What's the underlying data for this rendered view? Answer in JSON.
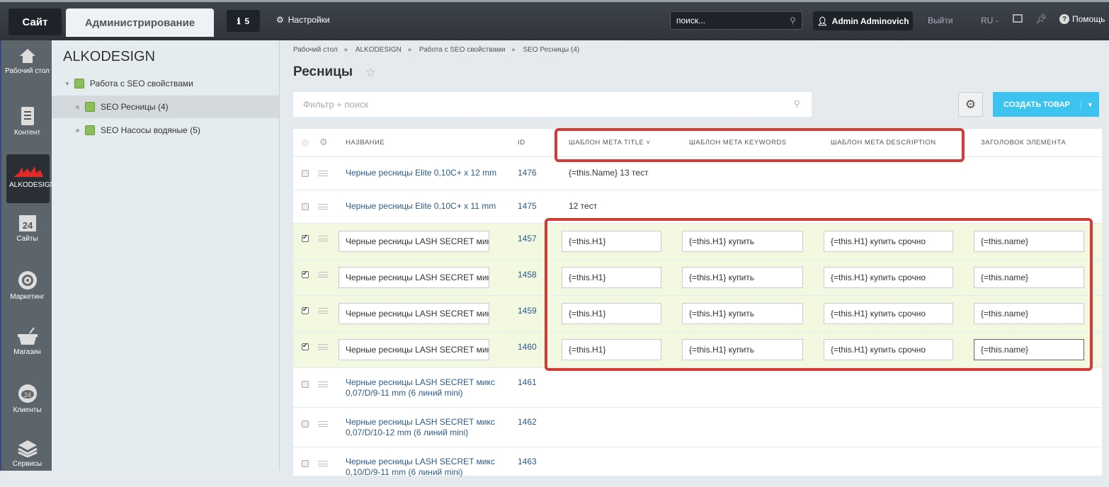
{
  "topbar": {
    "site": "Сайт",
    "admin": "Администрирование",
    "notifications": "5",
    "settings": "Настройки",
    "search_placeholder": "поиск...",
    "user": "Admin Adminovich",
    "logout": "Выйти",
    "lang": "RU",
    "help": "Помощь"
  },
  "leftnav": [
    {
      "label": "Рабочий стол",
      "icon": "home-icon"
    },
    {
      "label": "Контент",
      "icon": "document-icon"
    },
    {
      "label": "ALKODESIGN",
      "icon": "alkodesign-logo-icon",
      "active": true
    },
    {
      "label": "Сайты",
      "icon": "calendar-24-icon"
    },
    {
      "label": "Маркетинг",
      "icon": "target-icon"
    },
    {
      "label": "Магазин",
      "icon": "basket-icon"
    },
    {
      "label": "Клиенты",
      "icon": "cloud-24-icon"
    },
    {
      "label": "Сервисы",
      "icon": "layers-icon"
    }
  ],
  "tree": {
    "title": "ALKODESIGN",
    "items": [
      {
        "label": "Работа с SEO свойствами",
        "level": 0
      },
      {
        "label": "SEO Ресницы (4)",
        "level": 1,
        "selected": true
      },
      {
        "label": "SEO Насосы водяные (5)",
        "level": 1
      }
    ]
  },
  "breadcrumbs": [
    "Рабочий стол",
    "ALKODESIGN",
    "Работа с SEO свойствами",
    "SEO Ресницы (4)"
  ],
  "page_title": "Ресницы",
  "filter_placeholder": "Фильтр + поиск",
  "create_button": "СОЗДАТЬ ТОВАР",
  "colors": {
    "accent": "#3cc3f0",
    "highlight": "#d23b36",
    "edit_row": "#f3f8e0"
  },
  "table": {
    "columns": [
      "НАЗВАНИЕ",
      "ID",
      "ШАБЛОН META TITLE",
      "ШАБЛОН META KEYWORDS",
      "ШАБЛОН META DESCRIPTION",
      "ЗАГОЛОВОК ЭЛЕМЕНТА"
    ],
    "rows": [
      {
        "name": "Черные ресницы Elite 0,10C+ x 12 mm",
        "id": "1476",
        "title": "{=this.Name} 13 тест",
        "checked": false,
        "edit": false
      },
      {
        "name": "Черные ресницы Elite 0,10C+ x 11 mm",
        "id": "1475",
        "title": "12 тест",
        "checked": false,
        "edit": false
      },
      {
        "name": "Черные ресницы LASH SECRET мик",
        "id": "1457",
        "title": "{=this.H1}",
        "keywords": "{=this.H1} купить",
        "description": "{=this.H1} купить срочно",
        "heading": "{=this.name}",
        "checked": true,
        "edit": true
      },
      {
        "name": "Черные ресницы LASH SECRET мик",
        "id": "1458",
        "title": "{=this.H1}",
        "keywords": "{=this.H1} купить",
        "description": "{=this.H1} купить срочно",
        "heading": "{=this.name}",
        "checked": true,
        "edit": true
      },
      {
        "name": "Черные ресницы LASH SECRET мик",
        "id": "1459",
        "title": "{=this.H1}",
        "keywords": "{=this.H1} купить",
        "description": "{=this.H1} купить срочно",
        "heading": "{=this.name}",
        "checked": true,
        "edit": true
      },
      {
        "name": "Черные ресницы LASH SECRET мик",
        "id": "1460",
        "title": "{=this.H1}",
        "keywords": "{=this.H1} купить",
        "description": "{=this.H1} купить срочно",
        "heading": "{=this.name}",
        "checked": true,
        "edit": true
      },
      {
        "name": "Черные ресницы LASH SECRET микс 0,07/D/9-11 mm (6 линий mini)",
        "id": "1461",
        "checked": false,
        "edit": false
      },
      {
        "name": "Черные ресницы LASH SECRET микс 0,07/D/10-12 mm (6 линий mini)",
        "id": "1462",
        "checked": false,
        "edit": false
      },
      {
        "name": "Черные ресницы LASH SECRET микс 0,10/D/9-11 mm (6 линий mini)",
        "id": "1463",
        "checked": false,
        "edit": false
      }
    ]
  }
}
